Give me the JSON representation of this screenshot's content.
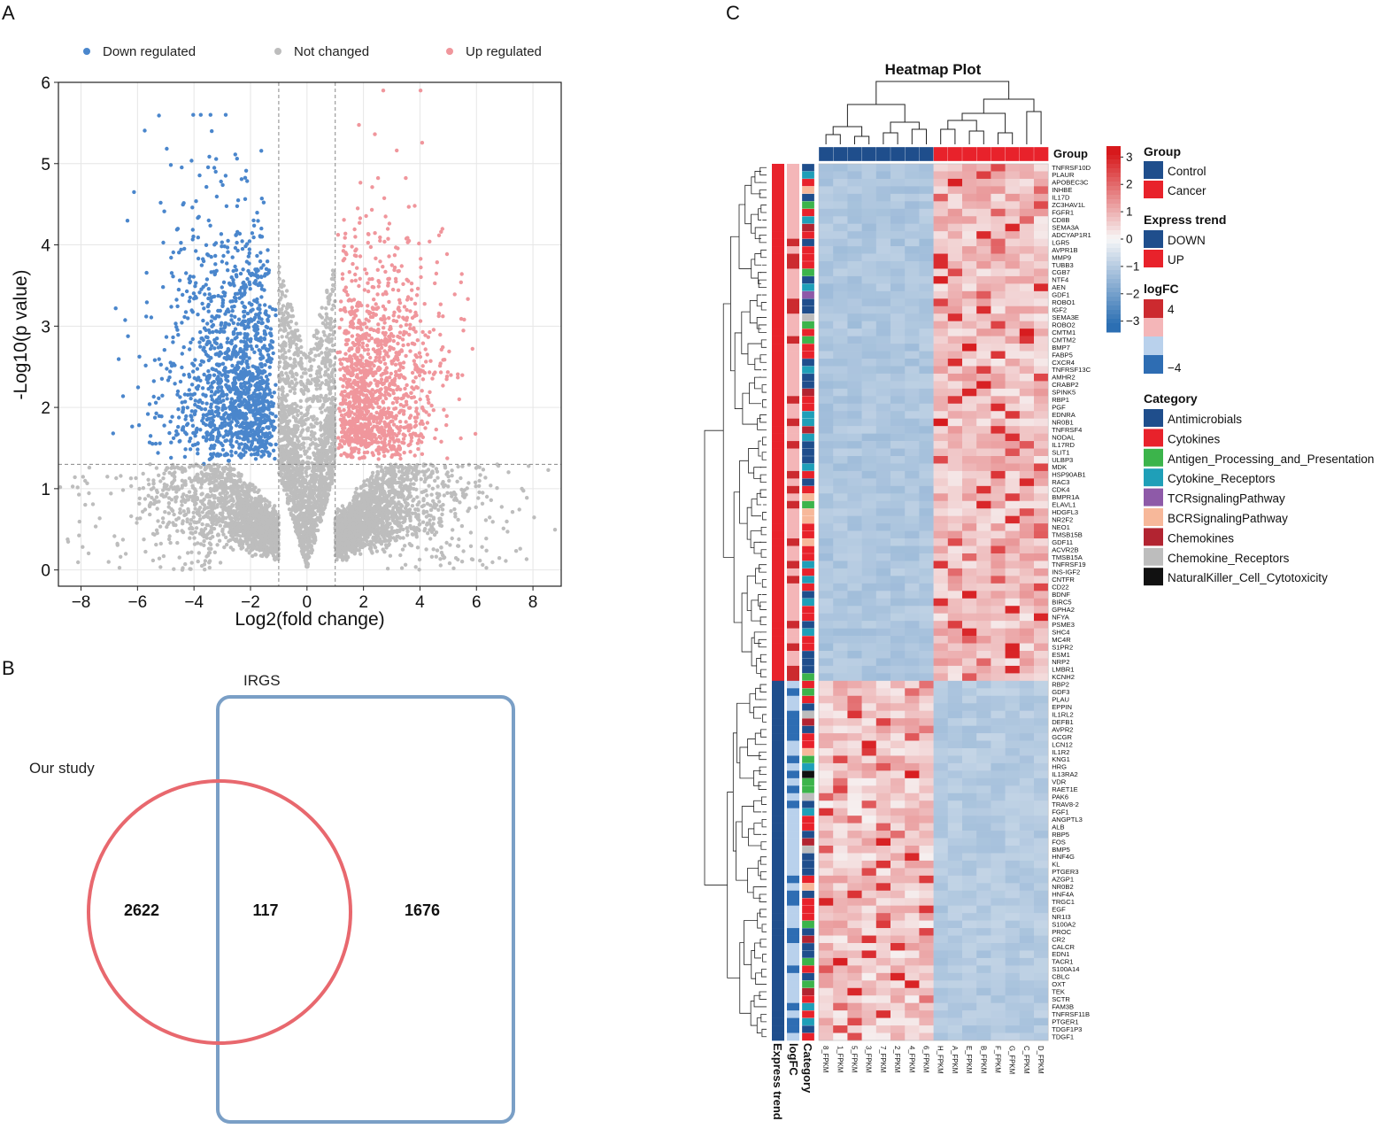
{
  "panels": {
    "a": "A",
    "b": "B",
    "c": "C"
  },
  "chart_data": [
    {
      "type": "scatter",
      "title": "",
      "xlabel": "Log2(fold change)",
      "ylabel": "-Log10(p value)",
      "xlim": [
        -8.8,
        9.0
      ],
      "ylim": [
        -0.2,
        6.0
      ],
      "xticks": [
        "−8",
        "−6",
        "−4",
        "−2",
        "0",
        "2",
        "4",
        "6",
        "8"
      ],
      "yticks": [
        "0",
        "1",
        "2",
        "3",
        "4",
        "5",
        "6"
      ],
      "thresholds": {
        "log2fc": [
          -1,
          1
        ],
        "neg_log10_p": 1.3
      },
      "legend": [
        {
          "label": "Down regulated",
          "color": "#4a86cc"
        },
        {
          "label": "Not changed",
          "color": "#bdbdbd"
        },
        {
          "label": "Up regulated",
          "color": "#f0969c"
        }
      ],
      "approx_counts": {
        "down": 1450,
        "not_changed": 5200,
        "up": 1300
      }
    },
    {
      "type": "venn",
      "sets": [
        {
          "name": "Our study",
          "only": "2622",
          "color": "#e8686e"
        },
        {
          "name": "IRGS",
          "only": "1676",
          "color": "#7a9fc6"
        }
      ],
      "intersection": "117"
    },
    {
      "type": "heatmap",
      "title": "Heatmap Plot",
      "columns": [
        "8_FPKM",
        "1_FPKM",
        "5_FPKM",
        "3_FPKM",
        "7_FPKM",
        "2_FPKM",
        "4_FPKM",
        "6_FPKM",
        "H_FPKM",
        "A_FPKM",
        "E_FPKM",
        "B_FPKM",
        "F_FPKM",
        "G_FPKM",
        "C_FPKM",
        "D_FPKM"
      ],
      "column_group": [
        "Control",
        "Control",
        "Control",
        "Control",
        "Control",
        "Control",
        "Control",
        "Control",
        "Cancer",
        "Cancer",
        "Cancer",
        "Cancer",
        "Cancer",
        "Cancer",
        "Cancer",
        "Cancer"
      ],
      "annotation_labels": [
        "Express trend",
        "logFC",
        "Category"
      ],
      "group_label": "Group",
      "rows_up": [
        "TNFRSF10D",
        "PLAUR",
        "APOBEC3C",
        "INHBE",
        "IL17D",
        "ZC3HAV1L",
        "FGFR1",
        "CD8B",
        "SEMA3A",
        "ADCYAP1R1",
        "LGR5",
        "AVPR1B",
        "MMP9",
        "TUBB3",
        "CGB7",
        "NTF4",
        "AEN",
        "GDF1",
        "ROBO1",
        "IGF2",
        "SEMA3E",
        "ROBO2",
        "CMTM1",
        "CMTM2",
        "BMP7",
        "FABP5",
        "CXCR4",
        "TNFRSF13C",
        "AMHR2",
        "CRABP2",
        "SPINK5",
        "RBP1",
        "PGF",
        "EDNRA",
        "NR0B1",
        "TNFRSF4",
        "NODAL",
        "IL17RD",
        "SLIT1",
        "ULBP3",
        "MDK",
        "HSP90AB1",
        "RAC3",
        "CDK4",
        "BMPR1A",
        "ELAVL1",
        "HDGFL3",
        "NR2F2",
        "NEO1",
        "TMSB15B",
        "GDF11",
        "ACVR2B",
        "TMSB15A",
        "TNFRSF19",
        "INS-IGF2",
        "CNTFR",
        "CD22",
        "BDNF",
        "BIRC5",
        "GPHA2",
        "NFYA",
        "PSME3",
        "SHC4",
        "MC4R",
        "S1PR2",
        "ESM1",
        "NRP2",
        "LMBR1",
        "KCNH2"
      ],
      "rows_down": [
        "RBP2",
        "GDF3",
        "PLAU",
        "EPPIN",
        "IL1RL2",
        "DEFB1",
        "AVPR2",
        "GCGR",
        "LCN12",
        "IL1R2",
        "KNG1",
        "HRG",
        "IL13RA2",
        "VDR",
        "RAET1E",
        "PAK6",
        "TRAV8-2",
        "FGF1",
        "ANGPTL3",
        "ALB",
        "RBP5",
        "FOS",
        "BMP5",
        "HNF4G",
        "KL",
        "PTGER3",
        "AZGP1",
        "NR0B2",
        "HNF4A",
        "TRGC1",
        "EGF",
        "NR1I3",
        "S100A2",
        "PROC",
        "CR2",
        "CALCR",
        "EDN1",
        "TACR1",
        "S100A14",
        "CBLC",
        "OXT",
        "TEK",
        "SCTR",
        "FAM3B",
        "TNFRSF11B",
        "PTGER1",
        "TDGF1P3",
        "TDGF1"
      ],
      "colorbar_ticks": [
        "3",
        "2",
        "1",
        "0",
        "−1",
        "−2",
        "−3"
      ],
      "colorscale": {
        "high": "#d7191c",
        "mid": "#f7f7f7",
        "low": "#2c6fb3"
      },
      "legends": {
        "group": {
          "title": "Group",
          "items": [
            {
              "label": "Control",
              "color": "#1f4e8c"
            },
            {
              "label": "Cancer",
              "color": "#e8222b"
            }
          ]
        },
        "express_trend": {
          "title": "Express trend",
          "items": [
            {
              "label": "DOWN",
              "color": "#1f4e8c"
            },
            {
              "label": "UP",
              "color": "#e8222b"
            }
          ]
        },
        "logfc": {
          "title": "logFC",
          "ticks": [
            "4",
            "−4"
          ],
          "colors": [
            "#cc2a2f",
            "#f4b6b8",
            "#b9d1ec",
            "#2e6db3"
          ]
        },
        "category": {
          "title": "Category",
          "items": [
            {
              "label": "Antimicrobials",
              "color": "#1f4e8c"
            },
            {
              "label": "Cytokines",
              "color": "#e8222b"
            },
            {
              "label": "Antigen_Processing_and_Presentation",
              "color": "#3cb44b"
            },
            {
              "label": "Cytokine_Receptors",
              "color": "#1f9fb8"
            },
            {
              "label": "TCRsignalingPathway",
              "color": "#8e5aa8"
            },
            {
              "label": "BCRSignalingPathway",
              "color": "#f7b89a"
            },
            {
              "label": "Chemokines",
              "color": "#b22431"
            },
            {
              "label": "Chemokine_Receptors",
              "color": "#bdbdbd"
            },
            {
              "label": "NaturalKiller_Cell_Cytotoxicity",
              "color": "#111111"
            }
          ]
        }
      }
    }
  ]
}
